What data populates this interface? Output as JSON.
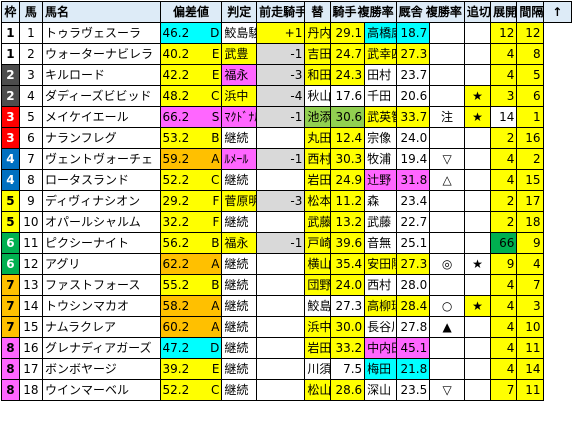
{
  "headers": {
    "waku": "枠",
    "num": "馬",
    "name": "馬名",
    "hensachi": "偏差値",
    "hantei": "判定",
    "prev_jockey": "前走騎手",
    "change": "替",
    "jockey": "騎手",
    "jockey_rate": "複勝率",
    "sire": "厩舎",
    "sire_rate": "複勝率",
    "oikiri": "追切",
    "tenkai": "展開",
    "interval": "間隔",
    "arrow": "↑"
  },
  "colors": {
    "header": "#ddebf7",
    "yellow": "#ffff00",
    "cyan": "#00ffff",
    "pink": "#ff66ff",
    "gray": "#d9d9d9",
    "orange": "#ffc000",
    "green": "#00b050",
    "lightgreen": "#92d050",
    "lightblue": "#bdd7ee"
  },
  "rows": [
    {
      "waku": "1",
      "num": "1",
      "name": "トゥラヴェスーラ",
      "score": "46.2",
      "grade": "D",
      "prev": "鮫島駿",
      "chg": "+1",
      "jockey": "丹内",
      "jr": "29.1",
      "trainer": "高橋康",
      "tr": "18.7",
      "oi": "",
      "ten": "",
      "int": "12",
      "up": "12"
    },
    {
      "waku": "1",
      "num": "2",
      "name": "ウォーターナビレラ",
      "score": "40.2",
      "grade": "E",
      "prev": "武豊",
      "chg": "-1",
      "jockey": "吉田隼",
      "jr": "24.7",
      "trainer": "武幸四",
      "tr": "27.3",
      "oi": "",
      "ten": "",
      "int": "4",
      "up": "8"
    },
    {
      "waku": "2",
      "num": "3",
      "name": "キルロード",
      "score": "42.2",
      "grade": "E",
      "prev": "福永",
      "chg": "-3",
      "jockey": "和田竜",
      "jr": "24.3",
      "trainer": "田村",
      "tr": "23.7",
      "oi": "",
      "ten": "",
      "int": "4",
      "up": "5"
    },
    {
      "waku": "2",
      "num": "4",
      "name": "ダディーズビビッド",
      "score": "48.2",
      "grade": "C",
      "prev": "浜中",
      "chg": "-4",
      "jockey": "秋山真",
      "jr": "17.6",
      "trainer": "千田",
      "tr": "20.6",
      "oi": "",
      "ten": "★",
      "int": "3",
      "up": "6"
    },
    {
      "waku": "3",
      "num": "5",
      "name": "メイケイエール",
      "score": "66.2",
      "grade": "S",
      "prev": "ﾏｸﾄﾞﾅﾙﾄﾞ",
      "chg": "-1",
      "jockey": "池添",
      "jr": "30.6",
      "trainer": "武英智",
      "tr": "33.7",
      "oi": "注",
      "ten": "★",
      "int": "14",
      "up": "1"
    },
    {
      "waku": "3",
      "num": "6",
      "name": "ナランフレグ",
      "score": "53.2",
      "grade": "B",
      "prev": "継続",
      "chg": "",
      "jockey": "丸田",
      "jr": "12.4",
      "trainer": "宗像",
      "tr": "24.0",
      "oi": "",
      "ten": "",
      "int": "2",
      "up": "16"
    },
    {
      "waku": "4",
      "num": "7",
      "name": "ヴェントヴォーチェ",
      "score": "59.2",
      "grade": "A",
      "prev": "ﾙﾒｰﾙ",
      "chg": "-1",
      "jockey": "西村淳",
      "jr": "30.3",
      "trainer": "牧浦",
      "tr": "19.4",
      "oi": "▽",
      "ten": "",
      "int": "4",
      "up": "2"
    },
    {
      "waku": "4",
      "num": "8",
      "name": "ロータスランド",
      "score": "52.2",
      "grade": "C",
      "prev": "継続",
      "chg": "",
      "jockey": "岩田康",
      "jr": "24.9",
      "trainer": "辻野",
      "tr": "31.8",
      "oi": "△",
      "ten": "",
      "int": "4",
      "up": "15"
    },
    {
      "waku": "5",
      "num": "9",
      "name": "ディヴィナシオン",
      "score": "29.2",
      "grade": "F",
      "prev": "菅原明",
      "chg": "-3",
      "jockey": "松本",
      "jr": "11.2",
      "trainer": "森",
      "tr": "23.4",
      "oi": "",
      "ten": "",
      "int": "2",
      "up": "17"
    },
    {
      "waku": "5",
      "num": "10",
      "name": "オパールシャルム",
      "score": "32.2",
      "grade": "F",
      "prev": "継続",
      "chg": "",
      "jockey": "武藤",
      "jr": "13.2",
      "trainer": "武藤",
      "tr": "22.7",
      "oi": "",
      "ten": "",
      "int": "2",
      "up": "18"
    },
    {
      "waku": "6",
      "num": "11",
      "name": "ピクシーナイト",
      "score": "56.2",
      "grade": "B",
      "prev": "福永",
      "chg": "-1",
      "jockey": "戸崎",
      "jr": "39.6",
      "trainer": "音無",
      "tr": "25.1",
      "oi": "",
      "ten": "",
      "int": "66",
      "up": "9"
    },
    {
      "waku": "6",
      "num": "12",
      "name": "アグリ",
      "score": "62.2",
      "grade": "A",
      "prev": "継続",
      "chg": "",
      "jockey": "横山和",
      "jr": "35.4",
      "trainer": "安田隆",
      "tr": "27.3",
      "oi": "◎",
      "ten": "★",
      "int": "9",
      "up": "4"
    },
    {
      "waku": "7",
      "num": "13",
      "name": "ファストフォース",
      "score": "55.2",
      "grade": "B",
      "prev": "継続",
      "chg": "",
      "jockey": "団野",
      "jr": "24.0",
      "trainer": "西村",
      "tr": "28.0",
      "oi": "",
      "ten": "",
      "int": "4",
      "up": "7"
    },
    {
      "waku": "7",
      "num": "14",
      "name": "トウシンマカオ",
      "score": "58.2",
      "grade": "A",
      "prev": "継続",
      "chg": "",
      "jockey": "鮫島駿",
      "jr": "27.3",
      "trainer": "高柳瑞",
      "tr": "28.4",
      "oi": "○",
      "ten": "★",
      "int": "4",
      "up": "3"
    },
    {
      "waku": "7",
      "num": "15",
      "name": "ナムラクレア",
      "score": "60.2",
      "grade": "A",
      "prev": "継続",
      "chg": "",
      "jockey": "浜中",
      "jr": "30.0",
      "trainer": "長谷川",
      "tr": "27.8",
      "oi": "▲",
      "ten": "",
      "int": "4",
      "up": "10"
    },
    {
      "waku": "8",
      "num": "16",
      "name": "グレナディアガーズ",
      "score": "47.2",
      "grade": "D",
      "prev": "継続",
      "chg": "",
      "jockey": "岩田望",
      "jr": "33.2",
      "trainer": "中内田",
      "tr": "45.1",
      "oi": "",
      "ten": "",
      "int": "4",
      "up": "11"
    },
    {
      "waku": "8",
      "num": "17",
      "name": "ボンボヤージ",
      "score": "39.2",
      "grade": "E",
      "prev": "継続",
      "chg": "",
      "jockey": "川須",
      "jr": "7.5",
      "trainer": "梅田",
      "tr": "21.8",
      "oi": "",
      "ten": "",
      "int": "4",
      "up": "14"
    },
    {
      "waku": "8",
      "num": "18",
      "name": "ウインマーベル",
      "score": "52.2",
      "grade": "C",
      "prev": "継続",
      "chg": "",
      "jockey": "松山",
      "jr": "28.6",
      "trainer": "深山",
      "tr": "23.5",
      "oi": "▽",
      "ten": "",
      "int": "7",
      "up": "11"
    }
  ]
}
